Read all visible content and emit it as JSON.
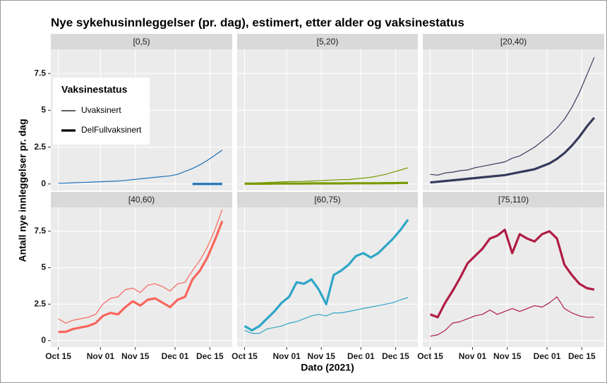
{
  "chart_data": {
    "type": "line",
    "title": "Nye sykehusinnleggelser (pr. dag), estimert, etter alder og vaksinestatus",
    "x_label": "Dato (2021)",
    "y_label": "Antall nye innleggelser pr. dag",
    "legend": {
      "title": "Vaksinestatus",
      "entries": [
        "Uvaksinert",
        "DelFullvaksinert"
      ]
    },
    "x": [
      "2021-10-15",
      "2021-10-18",
      "2021-10-21",
      "2021-10-24",
      "2021-10-27",
      "2021-10-30",
      "2021-11-02",
      "2021-11-05",
      "2021-11-08",
      "2021-11-11",
      "2021-11-14",
      "2021-11-17",
      "2021-11-20",
      "2021-11-23",
      "2021-11-26",
      "2021-11-29",
      "2021-12-02",
      "2021-12-05",
      "2021-12-08",
      "2021-12-11",
      "2021-12-14",
      "2021-12-17",
      "2021-12-20"
    ],
    "xlim": [
      "2021-10-12",
      "2021-12-24"
    ],
    "xticks": [
      {
        "value": "2021-10-15",
        "label": "Oct 15"
      },
      {
        "value": "2021-11-01",
        "label": "Nov 01"
      },
      {
        "value": "2021-11-15",
        "label": "Nov 15"
      },
      {
        "value": "2021-12-01",
        "label": "Dec 01"
      },
      {
        "value": "2021-12-15",
        "label": "Dec 15"
      }
    ],
    "ylim": [
      -0.44,
      9.14
    ],
    "yticks": [
      0,
      2.5,
      5,
      7.5
    ],
    "grid": true,
    "panels": [
      {
        "title": "[0,5)",
        "series": [
          {
            "color": "#1f72b8",
            "values": [
              0.05,
              0.06,
              0.08,
              0.1,
              0.12,
              0.14,
              0.16,
              0.18,
              0.2,
              0.24,
              0.3,
              0.35,
              0.4,
              0.45,
              0.5,
              0.55,
              0.65,
              0.85,
              1.05,
              1.3,
              1.6,
              1.95,
              2.3
            ]
          },
          {
            "color": "#1f72b8",
            "values": [
              null,
              null,
              null,
              null,
              null,
              null,
              null,
              null,
              null,
              null,
              null,
              null,
              null,
              null,
              null,
              null,
              null,
              null,
              0,
              0,
              0,
              0,
              0
            ]
          }
        ]
      },
      {
        "title": "[5,20)",
        "series": [
          {
            "color": "#7a9a01",
            "values": [
              0.05,
              0.06,
              0.08,
              0.1,
              0.12,
              0.14,
              0.16,
              0.17,
              0.18,
              0.2,
              0.22,
              0.25,
              0.27,
              0.3,
              0.3,
              0.35,
              0.4,
              0.45,
              0.55,
              0.65,
              0.8,
              0.95,
              1.1
            ]
          },
          {
            "color": "#7a9a01",
            "values": [
              0.02,
              0.02,
              0.02,
              0.02,
              0.03,
              0.03,
              0.03,
              0.03,
              0.03,
              0.04,
              0.04,
              0.04,
              0.04,
              0.04,
              0.05,
              0.05,
              0.05,
              0.05,
              0.05,
              0.06,
              0.06,
              0.07,
              0.07
            ]
          }
        ]
      },
      {
        "title": "[20,40)",
        "series": [
          {
            "color": "#353a5c",
            "values": [
              0.65,
              0.6,
              0.75,
              0.8,
              0.9,
              0.95,
              1.1,
              1.2,
              1.3,
              1.4,
              1.5,
              1.75,
              1.9,
              2.2,
              2.5,
              2.9,
              3.3,
              3.8,
              4.4,
              5.2,
              6.2,
              7.4,
              8.6
            ]
          },
          {
            "color": "#353a5c",
            "values": [
              0.1,
              0.15,
              0.2,
              0.25,
              0.3,
              0.35,
              0.4,
              0.45,
              0.5,
              0.55,
              0.6,
              0.7,
              0.8,
              0.9,
              1.0,
              1.2,
              1.4,
              1.7,
              2.1,
              2.6,
              3.2,
              3.9,
              4.5
            ]
          }
        ]
      },
      {
        "title": "[40,60)",
        "series": [
          {
            "color": "#f8665c",
            "values": [
              1.5,
              1.2,
              1.4,
              1.5,
              1.6,
              1.8,
              2.5,
              2.9,
              3.0,
              3.5,
              3.6,
              3.3,
              3.8,
              3.9,
              3.7,
              3.4,
              3.9,
              4.0,
              4.8,
              5.5,
              6.4,
              7.6,
              9.0
            ]
          },
          {
            "color": "#f8665c",
            "values": [
              0.6,
              0.6,
              0.8,
              0.9,
              1.0,
              1.2,
              1.7,
              1.9,
              1.8,
              2.3,
              2.7,
              2.4,
              2.8,
              2.9,
              2.6,
              2.3,
              2.8,
              3.0,
              4.2,
              4.8,
              5.7,
              6.9,
              8.2
            ]
          }
        ]
      },
      {
        "title": "[60,75)",
        "series": [
          {
            "color": "#2ea5c7",
            "values": [
              0.7,
              0.5,
              0.5,
              0.8,
              0.9,
              1.0,
              1.2,
              1.3,
              1.5,
              1.7,
              1.8,
              1.7,
              1.9,
              1.9,
              2.0,
              2.1,
              2.2,
              2.3,
              2.4,
              2.5,
              2.6,
              2.8,
              2.95
            ]
          },
          {
            "color": "#2ea5c7",
            "values": [
              1.0,
              0.7,
              1.0,
              1.5,
              2.0,
              2.6,
              3.0,
              4.0,
              3.9,
              4.2,
              3.5,
              2.5,
              4.5,
              4.8,
              5.2,
              5.8,
              6.0,
              5.7,
              6.0,
              6.5,
              7.0,
              7.6,
              8.3
            ]
          }
        ]
      },
      {
        "title": "[75,110)",
        "series": [
          {
            "color": "#b01c44",
            "values": [
              0.3,
              0.4,
              0.7,
              1.2,
              1.3,
              1.5,
              1.7,
              1.8,
              2.1,
              1.8,
              2.0,
              2.2,
              2.0,
              2.2,
              2.4,
              2.3,
              2.6,
              3.0,
              2.2,
              1.9,
              1.7,
              1.6,
              1.6
            ]
          },
          {
            "color": "#b01c44",
            "values": [
              1.8,
              1.6,
              2.6,
              3.4,
              4.3,
              5.3,
              5.8,
              6.3,
              7.0,
              7.2,
              7.6,
              6.0,
              7.3,
              7.0,
              6.8,
              7.3,
              7.5,
              7.0,
              5.2,
              4.5,
              3.9,
              3.6,
              3.5
            ]
          }
        ]
      }
    ]
  }
}
